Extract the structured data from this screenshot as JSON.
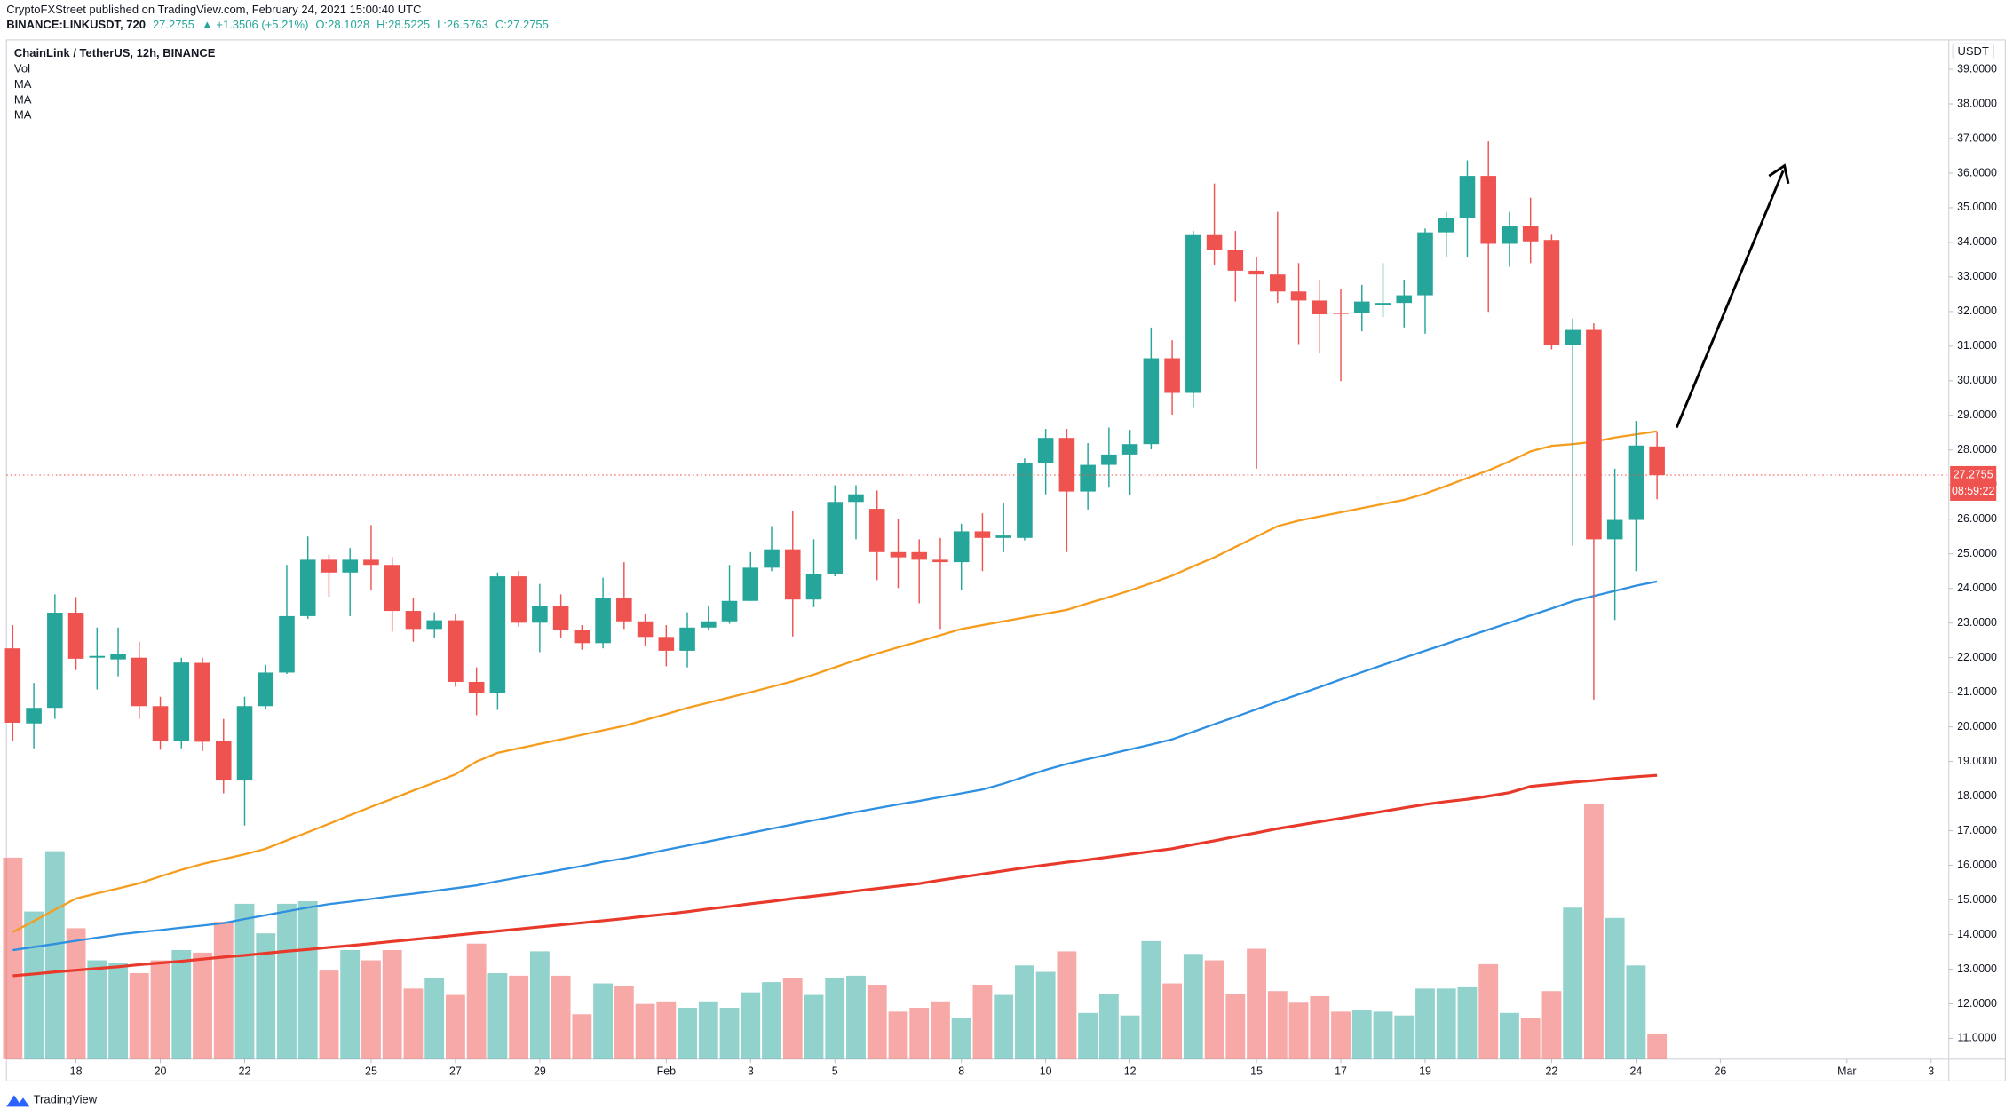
{
  "header": {
    "publisher": "CryptoFXStreet published on TradingView.com, February 24, 2021 15:00:40 UTC",
    "symbol": "BINANCE:LINKUSDT, 720",
    "last": "27.2755",
    "change": "▲ +1.3506 (+5.21%)",
    "ohlc": [
      "O:28.1028",
      "H:28.5225",
      "L:26.5763",
      "C:27.2755"
    ],
    "branding": "TradingView"
  },
  "chart_data": {
    "type": "candlestick",
    "title": "ChainLink / TetherUS, 12h, BINANCE",
    "y_unit": "USDT",
    "countdown": "08:59:22",
    "up_color": "#26a69a",
    "down_color": "#ef5350",
    "last_price_line": true,
    "open": [
      22.27,
      20.1,
      20.55,
      23.3,
      22.0,
      21.95,
      22.0,
      20.6,
      19.6,
      21.85,
      19.6,
      18.45,
      20.6,
      21.57,
      23.2,
      24.83,
      24.46,
      24.83,
      24.68,
      23.35,
      22.83,
      23.08,
      21.3,
      20.97,
      24.35,
      23.01,
      23.5,
      22.79,
      22.42,
      23.72,
      23.05,
      22.6,
      22.2,
      22.87,
      23.05,
      23.64,
      24.6,
      25.13,
      23.68,
      24.42,
      26.5,
      26.3,
      25.05,
      25.05,
      24.83,
      24.76,
      25.65,
      25.46,
      25.46,
      27.61,
      28.35,
      26.8,
      27.57,
      27.87,
      28.17,
      30.65,
      29.65,
      34.21,
      33.77,
      33.18,
      33.07,
      32.58,
      32.32,
      31.97,
      31.95,
      32.2,
      32.25,
      32.47,
      34.29,
      34.7,
      35.92,
      33.96,
      34.47,
      34.07,
      31.03,
      31.47,
      25.42,
      25.98,
      28.1028
    ],
    "high": [
      22.94,
      21.27,
      23.83,
      23.75,
      22.87,
      22.87,
      22.46,
      20.87,
      22.0,
      22.0,
      20.23,
      20.87,
      21.79,
      24.68,
      25.5,
      24.98,
      25.17,
      25.83,
      24.91,
      23.72,
      23.31,
      23.27,
      21.72,
      24.46,
      24.5,
      24.13,
      23.83,
      22.94,
      24.31,
      24.76,
      23.27,
      22.94,
      23.31,
      23.5,
      24.68,
      25.05,
      25.8,
      26.24,
      25.42,
      26.98,
      26.98,
      26.83,
      26.02,
      25.42,
      25.46,
      25.87,
      26.17,
      26.46,
      27.76,
      28.61,
      28.61,
      28.2,
      28.65,
      28.58,
      31.54,
      31.17,
      34.33,
      35.7,
      34.33,
      33.58,
      34.88,
      33.4,
      32.92,
      32.66,
      32.77,
      33.4,
      32.92,
      34.4,
      34.88,
      36.37,
      36.92,
      34.88,
      35.29,
      34.22,
      31.8,
      31.66,
      27.46,
      28.84,
      28.5225
    ],
    "low": [
      19.6,
      19.38,
      20.23,
      21.64,
      21.08,
      21.46,
      20.23,
      19.34,
      19.38,
      19.3,
      18.08,
      17.15,
      20.53,
      21.53,
      23.12,
      23.76,
      23.2,
      23.94,
      22.75,
      22.46,
      22.57,
      21.16,
      20.34,
      20.49,
      22.9,
      22.16,
      22.57,
      22.23,
      22.27,
      22.83,
      22.35,
      21.75,
      21.72,
      22.79,
      22.98,
      23.64,
      24.5,
      22.61,
      23.46,
      24.35,
      25.42,
      24.24,
      24.01,
      23.57,
      22.83,
      23.94,
      24.5,
      25.05,
      25.39,
      26.72,
      25.05,
      26.28,
      26.91,
      26.69,
      28.02,
      29.02,
      29.24,
      33.33,
      32.29,
      27.46,
      32.25,
      31.06,
      30.8,
      29.99,
      31.43,
      31.84,
      31.54,
      31.36,
      33.58,
      33.58,
      31.99,
      33.29,
      33.4,
      30.91,
      25.24,
      20.79,
      23.09,
      24.5,
      26.5763
    ],
    "close": [
      20.12,
      20.55,
      23.3,
      21.97,
      22.05,
      22.1,
      20.6,
      19.6,
      21.86,
      19.57,
      18.45,
      20.6,
      21.57,
      23.2,
      24.83,
      24.46,
      24.83,
      24.68,
      23.35,
      22.83,
      23.08,
      21.3,
      20.97,
      24.35,
      23.01,
      23.5,
      22.79,
      22.42,
      23.72,
      23.05,
      22.6,
      22.2,
      22.87,
      23.05,
      23.64,
      24.6,
      25.13,
      23.68,
      24.42,
      26.5,
      26.72,
      25.05,
      24.9,
      24.83,
      24.76,
      25.65,
      25.46,
      25.53,
      27.61,
      28.35,
      26.8,
      27.57,
      27.87,
      28.17,
      30.65,
      29.65,
      34.21,
      33.77,
      33.18,
      33.07,
      32.58,
      32.32,
      31.92,
      31.93,
      32.29,
      32.25,
      32.47,
      34.29,
      34.7,
      35.92,
      33.96,
      34.47,
      34.03,
      31.03,
      31.47,
      25.42,
      25.98,
      28.13,
      27.2755
    ],
    "volume": {
      "name": "Vol",
      "ylim": [
        0,
        260
      ],
      "values": [
        157,
        115,
        162,
        102,
        77,
        75,
        67,
        77,
        85,
        83,
        107,
        121,
        98,
        121,
        123,
        69,
        85,
        77,
        85,
        55,
        63,
        50,
        90,
        67,
        65,
        84,
        65,
        35,
        59,
        57,
        43,
        45,
        40,
        45,
        40,
        52,
        60,
        63,
        50,
        63,
        65,
        58,
        37,
        40,
        45,
        32,
        58,
        50,
        73,
        68,
        84,
        36,
        51,
        34,
        92,
        59,
        82,
        77,
        51,
        86,
        53,
        44,
        49,
        37,
        38,
        37,
        34,
        55,
        55,
        56,
        74,
        36,
        32,
        53,
        118,
        199,
        110,
        73,
        20
      ]
    },
    "series": [
      {
        "name": "MA",
        "color": "#f59d1e",
        "values": [
          14.07,
          14.39,
          14.72,
          15.04,
          15.19,
          15.33,
          15.48,
          15.68,
          15.87,
          16.04,
          16.18,
          16.32,
          16.48,
          16.72,
          16.96,
          17.2,
          17.45,
          17.69,
          17.92,
          18.16,
          18.39,
          18.63,
          19.0,
          19.25,
          19.38,
          19.51,
          19.64,
          19.77,
          19.9,
          20.03,
          20.2,
          20.37,
          20.55,
          20.7,
          20.85,
          21.0,
          21.16,
          21.32,
          21.51,
          21.72,
          21.93,
          22.12,
          22.3,
          22.47,
          22.65,
          22.83,
          22.94,
          23.05,
          23.16,
          23.27,
          23.38,
          23.57,
          23.75,
          23.94,
          24.15,
          24.37,
          24.64,
          24.9,
          25.2,
          25.5,
          25.8,
          25.96,
          26.08,
          26.2,
          26.32,
          26.44,
          26.56,
          26.74,
          26.96,
          27.19,
          27.41,
          27.67,
          27.96,
          28.12,
          28.17,
          28.24,
          28.36,
          28.45,
          28.54
        ]
      },
      {
        "name": "MA",
        "color": "#2f8fe0",
        "values": [
          13.55,
          13.64,
          13.73,
          13.82,
          13.91,
          14.0,
          14.07,
          14.13,
          14.2,
          14.26,
          14.33,
          14.45,
          14.56,
          14.67,
          14.78,
          14.88,
          14.95,
          15.03,
          15.11,
          15.18,
          15.26,
          15.34,
          15.42,
          15.54,
          15.65,
          15.76,
          15.87,
          15.98,
          16.1,
          16.2,
          16.32,
          16.45,
          16.57,
          16.69,
          16.81,
          16.94,
          17.06,
          17.18,
          17.3,
          17.42,
          17.54,
          17.65,
          17.76,
          17.86,
          17.97,
          18.08,
          18.19,
          18.36,
          18.56,
          18.76,
          18.93,
          19.07,
          19.21,
          19.35,
          19.49,
          19.64,
          19.86,
          20.08,
          20.29,
          20.51,
          20.73,
          20.94,
          21.15,
          21.37,
          21.58,
          21.79,
          22.0,
          22.2,
          22.4,
          22.61,
          22.81,
          23.01,
          23.22,
          23.42,
          23.63,
          23.78,
          23.93,
          24.08,
          24.2
        ]
      },
      {
        "name": "MA",
        "color": "#e8392b",
        "values": [
          12.81,
          12.86,
          12.92,
          12.97,
          13.02,
          13.07,
          13.13,
          13.18,
          13.23,
          13.29,
          13.35,
          13.4,
          13.46,
          13.52,
          13.57,
          13.63,
          13.68,
          13.74,
          13.8,
          13.86,
          13.92,
          13.98,
          14.04,
          14.1,
          14.16,
          14.22,
          14.28,
          14.34,
          14.4,
          14.46,
          14.53,
          14.59,
          14.66,
          14.74,
          14.81,
          14.89,
          14.96,
          15.04,
          15.11,
          15.18,
          15.26,
          15.33,
          15.4,
          15.47,
          15.57,
          15.66,
          15.75,
          15.84,
          15.93,
          16.01,
          16.09,
          16.16,
          16.24,
          16.32,
          16.4,
          16.48,
          16.6,
          16.71,
          16.83,
          16.94,
          17.06,
          17.16,
          17.26,
          17.36,
          17.46,
          17.56,
          17.66,
          17.76,
          17.84,
          17.91,
          18.0,
          18.1,
          18.28,
          18.34,
          18.4,
          18.45,
          18.51,
          18.56,
          18.6
        ]
      }
    ],
    "xlim": [
      -0.3,
      91.84
    ],
    "xticks": [
      {
        "value": 3,
        "label": "18"
      },
      {
        "value": 7,
        "label": "20"
      },
      {
        "value": 11,
        "label": "22"
      },
      {
        "value": 17,
        "label": "25"
      },
      {
        "value": 21,
        "label": "27"
      },
      {
        "value": 25,
        "label": "29"
      },
      {
        "value": 31,
        "label": "Feb"
      },
      {
        "value": 35,
        "label": "3"
      },
      {
        "value": 39,
        "label": "5"
      },
      {
        "value": 45,
        "label": "8"
      },
      {
        "value": 49,
        "label": "10"
      },
      {
        "value": 53,
        "label": "12"
      },
      {
        "value": 59,
        "label": "15"
      },
      {
        "value": 63,
        "label": "17"
      },
      {
        "value": 67,
        "label": "19"
      },
      {
        "value": 73,
        "label": "22"
      },
      {
        "value": 77,
        "label": "24"
      },
      {
        "value": 81,
        "label": "26"
      },
      {
        "value": 87,
        "label": "Mar"
      },
      {
        "value": 91,
        "label": "3"
      }
    ],
    "ylim": [
      10.4,
      39.85
    ],
    "yticks": [
      {
        "value": 11,
        "label": "11.0000"
      },
      {
        "value": 12,
        "label": "12.0000"
      },
      {
        "value": 13,
        "label": "13.0000"
      },
      {
        "value": 14,
        "label": "14.0000"
      },
      {
        "value": 15,
        "label": "15.0000"
      },
      {
        "value": 16,
        "label": "16.0000"
      },
      {
        "value": 17,
        "label": "17.0000"
      },
      {
        "value": 18,
        "label": "18.0000"
      },
      {
        "value": 19,
        "label": "19.0000"
      },
      {
        "value": 20,
        "label": "20.0000"
      },
      {
        "value": 21,
        "label": "21.0000"
      },
      {
        "value": 22,
        "label": "22.0000"
      },
      {
        "value": 23,
        "label": "23.0000"
      },
      {
        "value": 24,
        "label": "24.0000"
      },
      {
        "value": 25,
        "label": "25.0000"
      },
      {
        "value": 26,
        "label": "26.0000"
      },
      {
        "value": 27,
        "label": "27.0000"
      },
      {
        "value": 28,
        "label": "28.0000"
      },
      {
        "value": 29,
        "label": "29.0000"
      },
      {
        "value": 30,
        "label": "30.0000"
      },
      {
        "value": 31,
        "label": "31.0000"
      },
      {
        "value": 32,
        "label": "32.0000"
      },
      {
        "value": 33,
        "label": "33.0000"
      },
      {
        "value": 34,
        "label": "34.0000"
      },
      {
        "value": 35,
        "label": "35.0000"
      },
      {
        "value": 36,
        "label": "36.0000"
      },
      {
        "value": 37,
        "label": "37.0000"
      },
      {
        "value": 38,
        "label": "38.0000"
      },
      {
        "value": 39,
        "label": "39.0000"
      }
    ]
  }
}
